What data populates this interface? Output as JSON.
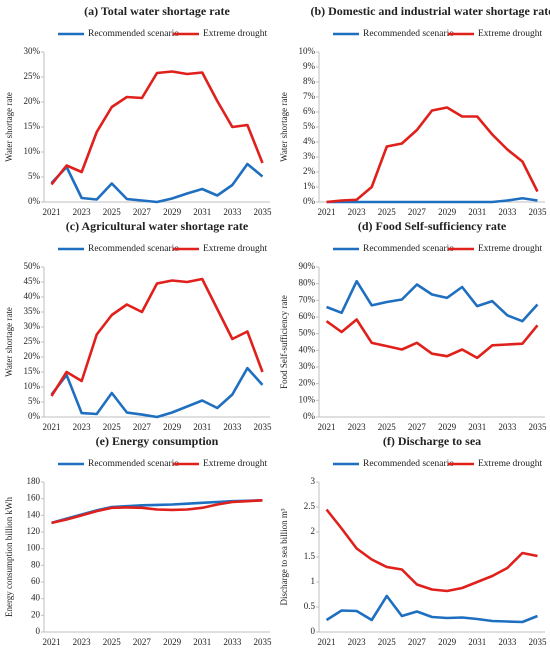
{
  "chart_data": [
    {
      "type": "line",
      "title": "(a) Total water shortage rate",
      "y_label": "Water  shortage rate",
      "categories": [
        "2021",
        null,
        "2023",
        null,
        "2025",
        null,
        "2027",
        null,
        "2029",
        null,
        "2031",
        null,
        "2033",
        null,
        "2035"
      ],
      "series": [
        {
          "name": "Recommended scenario",
          "color": "#1f6fc0",
          "values": [
            3.8,
            7,
            0.8,
            0.5,
            3.7,
            0.6,
            0.3,
            0,
            0.7,
            1.7,
            2.6,
            1.3,
            3.4,
            7.6,
            5.1
          ]
        },
        {
          "name": "Extreme drought",
          "color": "#e0201b",
          "values": [
            3.5,
            7.3,
            6.0,
            14,
            19,
            21,
            20.8,
            25.8,
            26.1,
            25.6,
            25.9,
            20.2,
            15,
            15.4,
            7.8
          ]
        }
      ],
      "ylim": [
        0,
        30
      ],
      "yticks": [
        {
          "value": 0,
          "label": "0%"
        },
        {
          "value": 5,
          "label": "5%"
        },
        {
          "value": 10,
          "label": "10%"
        },
        {
          "value": 15,
          "label": "15%"
        },
        {
          "value": 20,
          "label": "20%"
        },
        {
          "value": 25,
          "label": "25%"
        },
        {
          "value": 30,
          "label": "30%"
        }
      ],
      "grid": false
    },
    {
      "type": "line",
      "title": "(b) Domestic and industrial water shortage rate",
      "y_label": "Water  shortage rate",
      "categories": [
        "2021",
        null,
        "2023",
        null,
        "2025",
        null,
        "2027",
        null,
        "2029",
        null,
        "2031",
        null,
        "2033",
        null,
        "2035"
      ],
      "series": [
        {
          "name": "Recommended scenario",
          "color": "#1f6fc0",
          "values": [
            0,
            0,
            0,
            0,
            0,
            0,
            0,
            0,
            0,
            0,
            0,
            0,
            0.1,
            0.25,
            0.1
          ]
        },
        {
          "name": "Extreme drought",
          "color": "#e0201b",
          "values": [
            0,
            0.1,
            0.15,
            1.0,
            3.7,
            3.9,
            4.8,
            6.1,
            6.3,
            5.7,
            5.7,
            4.5,
            3.5,
            2.7,
            0.7
          ]
        }
      ],
      "ylim": [
        0,
        10
      ],
      "yticks": [
        {
          "value": 0,
          "label": "0%"
        },
        {
          "value": 1,
          "label": "1%"
        },
        {
          "value": 2,
          "label": "2%"
        },
        {
          "value": 3,
          "label": "3%"
        },
        {
          "value": 4,
          "label": "4%"
        },
        {
          "value": 5,
          "label": "5%"
        },
        {
          "value": 6,
          "label": "6%"
        },
        {
          "value": 7,
          "label": "7%"
        },
        {
          "value": 8,
          "label": "8%"
        },
        {
          "value": 9,
          "label": "9%"
        },
        {
          "value": 10,
          "label": "10%"
        }
      ],
      "grid": false
    },
    {
      "type": "line",
      "title": "(c) Agricultural water shortage rate",
      "y_label": "Water  shortage rate",
      "categories": [
        "2021",
        null,
        "2023",
        null,
        "2025",
        null,
        "2027",
        null,
        "2029",
        null,
        "2031",
        null,
        "2033",
        null,
        "2035"
      ],
      "series": [
        {
          "name": "Recommended scenario",
          "color": "#1f6fc0",
          "values": [
            7.5,
            14,
            1.3,
            1,
            8,
            1.5,
            0.8,
            0,
            1.5,
            3.5,
            5.5,
            3,
            7.5,
            16.3,
            10.7
          ]
        },
        {
          "name": "Extreme drought",
          "color": "#e0201b",
          "values": [
            7,
            15,
            12,
            27.5,
            34,
            37.5,
            35,
            44.5,
            45.5,
            45,
            46,
            36,
            26,
            28.5,
            15
          ]
        }
      ],
      "ylim": [
        0,
        50
      ],
      "yticks": [
        {
          "value": 0,
          "label": "0%"
        },
        {
          "value": 5,
          "label": "5%"
        },
        {
          "value": 10,
          "label": "10%"
        },
        {
          "value": 15,
          "label": "15%"
        },
        {
          "value": 20,
          "label": "20%"
        },
        {
          "value": 25,
          "label": "25%"
        },
        {
          "value": 30,
          "label": "30%"
        },
        {
          "value": 35,
          "label": "35%"
        },
        {
          "value": 40,
          "label": "40%"
        },
        {
          "value": 45,
          "label": "45%"
        },
        {
          "value": 50,
          "label": "50%"
        }
      ],
      "grid": false
    },
    {
      "type": "line",
      "title": "(d) Food  Self-sufficiency rate",
      "y_label": "Food Self-sufficiency rate",
      "categories": [
        "2021",
        null,
        "2023",
        null,
        "2025",
        null,
        "2027",
        null,
        "2029",
        null,
        "2031",
        null,
        "2033",
        null,
        "2035"
      ],
      "series": [
        {
          "name": "Recommended scenario",
          "color": "#1f6fc0",
          "values": [
            66,
            62.5,
            81.5,
            67,
            69,
            70.5,
            79.5,
            73.5,
            71.5,
            78,
            66.5,
            69.5,
            61,
            57.5,
            67.5
          ]
        },
        {
          "name": "Extreme drought",
          "color": "#e0201b",
          "values": [
            57.5,
            51,
            58.5,
            44.5,
            42.5,
            40.5,
            44.5,
            38,
            36.5,
            40.5,
            35.5,
            43,
            43.5,
            44,
            55
          ]
        }
      ],
      "ylim": [
        0,
        90
      ],
      "yticks": [
        {
          "value": 0,
          "label": "0%"
        },
        {
          "value": 10,
          "label": "10%"
        },
        {
          "value": 20,
          "label": "20%"
        },
        {
          "value": 30,
          "label": "30%"
        },
        {
          "value": 40,
          "label": "40%"
        },
        {
          "value": 50,
          "label": "50%"
        },
        {
          "value": 60,
          "label": "60%"
        },
        {
          "value": 70,
          "label": "70%"
        },
        {
          "value": 80,
          "label": "80%"
        },
        {
          "value": 90,
          "label": "90%"
        }
      ],
      "grid": false
    },
    {
      "type": "line",
      "title": "(e) Energy consumption",
      "y_label": "Energy consumption billion kWh",
      "categories": [
        "2021",
        null,
        "2023",
        null,
        "2025",
        null,
        "2027",
        null,
        "2029",
        null,
        "2031",
        null,
        "2033",
        null,
        "2035"
      ],
      "series": [
        {
          "name": "Recommended scenario",
          "color": "#1f6fc0",
          "values": [
            131,
            136,
            141,
            146,
            150,
            151,
            152,
            152.5,
            153,
            154,
            155,
            156,
            157,
            157.5,
            158
          ]
        },
        {
          "name": "Extreme drought",
          "color": "#e0201b",
          "values": [
            131,
            135,
            140,
            145,
            149,
            149.5,
            149,
            147,
            146.5,
            147,
            149,
            153,
            156,
            157,
            158
          ]
        }
      ],
      "ylim": [
        0,
        180
      ],
      "yticks": [
        0,
        20,
        40,
        60,
        80,
        100,
        120,
        140,
        160,
        180
      ],
      "grid": false
    },
    {
      "type": "line",
      "title": "(f) Discharge to sea",
      "y_label": "Discharge to sea billion m³",
      "categories": [
        "2021",
        null,
        "2023",
        null,
        "2025",
        null,
        "2027",
        null,
        "2029",
        null,
        "2031",
        null,
        "2033",
        null,
        "2035"
      ],
      "series": [
        {
          "name": "Recommended scenario",
          "color": "#1f6fc0",
          "values": [
            0.24,
            0.43,
            0.42,
            0.24,
            0.72,
            0.32,
            0.41,
            0.3,
            0.28,
            0.29,
            0.26,
            0.22,
            0.21,
            0.2,
            0.32
          ]
        },
        {
          "name": "Extreme drought",
          "color": "#e0201b",
          "values": [
            2.45,
            2.07,
            1.67,
            1.45,
            1.3,
            1.25,
            0.95,
            0.85,
            0.82,
            0.88,
            1.0,
            1.12,
            1.28,
            1.58,
            1.52
          ]
        }
      ],
      "ylim": [
        0,
        3
      ],
      "yticks": [
        0,
        0.5,
        1,
        1.5,
        2,
        2.5,
        3
      ],
      "grid": false
    }
  ]
}
